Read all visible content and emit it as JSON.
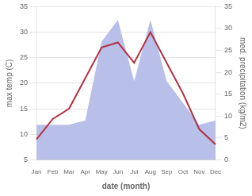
{
  "chart_data": {
    "type": "line",
    "categories": [
      "Jan",
      "Feb",
      "Mar",
      "Apr",
      "May",
      "Jun",
      "Jul",
      "Aug",
      "Sep",
      "Oct",
      "Nov",
      "Dec"
    ],
    "series": [
      {
        "type": "area",
        "color": "#b8bfe8",
        "axis": "y2",
        "values": [
          8,
          8,
          8,
          9,
          27,
          32,
          18,
          32,
          18,
          13,
          8,
          9
        ]
      },
      {
        "type": "line",
        "color": "#b33040",
        "values": [
          9,
          13,
          15,
          21,
          27,
          28,
          24,
          30,
          24,
          18,
          11,
          8
        ]
      }
    ],
    "xlabel": "date (month)",
    "ylabel": "max temp (C)",
    "y2label": "med. precipitation (kg/m2)",
    "ylim": [
      5,
      35
    ],
    "yticks": [
      5,
      10,
      15,
      20,
      25,
      30,
      35
    ],
    "y2lim": [
      0,
      35
    ],
    "y2ticks": [
      0,
      5,
      10,
      15,
      20,
      25,
      30,
      35
    ],
    "grid": true
  }
}
